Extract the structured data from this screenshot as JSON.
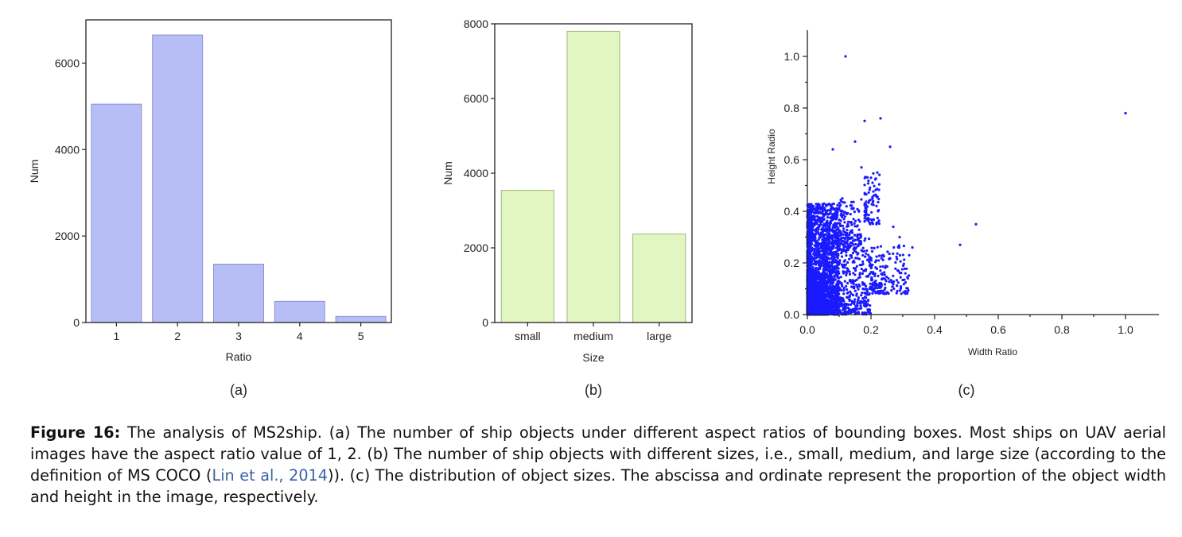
{
  "chart_data": [
    {
      "type": "bar",
      "panel_label": "(a)",
      "xlabel": "Ratio",
      "ylabel": "Num",
      "categories": [
        "1",
        "2",
        "3",
        "4",
        "5"
      ],
      "values": [
        5050,
        6650,
        1350,
        490,
        140
      ],
      "ylim": [
        0,
        7000
      ],
      "yticks": [
        0,
        2000,
        4000,
        6000
      ],
      "bar_color": "#b7bdf5",
      "bar_edge": "#8a90d8",
      "grid": false
    },
    {
      "type": "bar",
      "panel_label": "(b)",
      "xlabel": "Size",
      "ylabel": "Num",
      "categories": [
        "small",
        "medium",
        "large"
      ],
      "values": [
        3540,
        7800,
        2370
      ],
      "ylim": [
        0,
        8000
      ],
      "yticks": [
        0,
        2000,
        4000,
        6000,
        8000
      ],
      "bar_color": "#e2f6c2",
      "bar_edge": "#9cba78",
      "grid": false
    },
    {
      "type": "scatter",
      "panel_label": "(c)",
      "xlabel": "Width Ratio",
      "ylabel": "Height Radio",
      "xlim": [
        0,
        1.08
      ],
      "ylim": [
        0,
        1.08
      ],
      "xticks": [
        "0.0",
        "0.2",
        "0.4",
        "0.6",
        "0.8",
        "1.0"
      ],
      "yticks": [
        "0.0",
        "0.2",
        "0.4",
        "0.6",
        "0.8",
        "1.0"
      ],
      "point_color": "#1a1aff",
      "outliers": [
        [
          0.12,
          1.0
        ],
        [
          1.0,
          0.78
        ],
        [
          0.18,
          0.75
        ],
        [
          0.23,
          0.76
        ],
        [
          0.15,
          0.67
        ],
        [
          0.26,
          0.65
        ],
        [
          0.08,
          0.64
        ],
        [
          0.53,
          0.35
        ],
        [
          0.48,
          0.27
        ],
        [
          0.33,
          0.26
        ],
        [
          0.32,
          0.23
        ],
        [
          0.29,
          0.3
        ],
        [
          0.27,
          0.34
        ],
        [
          0.22,
          0.55
        ],
        [
          0.17,
          0.57
        ],
        [
          0.2,
          0.53
        ]
      ],
      "clusters": [
        {
          "x": [
            0.0,
            0.1
          ],
          "y": [
            0.0,
            0.43
          ],
          "n": 1700
        },
        {
          "x": [
            0.0,
            0.05
          ],
          "y": [
            0.0,
            0.15
          ],
          "n": 900
        },
        {
          "x": [
            0.05,
            0.2
          ],
          "y": [
            0.0,
            0.3
          ],
          "n": 700
        },
        {
          "x": [
            0.18,
            0.23
          ],
          "y": [
            0.35,
            0.55
          ],
          "n": 90
        },
        {
          "x": [
            0.2,
            0.32
          ],
          "y": [
            0.08,
            0.27
          ],
          "n": 180
        },
        {
          "x": [
            0.1,
            0.17
          ],
          "y": [
            0.25,
            0.45
          ],
          "n": 150
        }
      ]
    }
  ],
  "caption": {
    "lead": "Figure 16:",
    "text_1": " The analysis of MS2ship. (a) The number of ship objects under different aspect ratios of bounding boxes. Most ships on UAV aerial images have the aspect ratio value of 1, 2. (b) The number of ship objects with different sizes, i.e., small, medium, and large size (according to the definition of MS COCO (",
    "citation": "Lin et al., 2014",
    "text_2": ")). (c) The distribution of object sizes. The abscissa and ordinate represent the proportion of the object width and height in the image, respectively."
  }
}
